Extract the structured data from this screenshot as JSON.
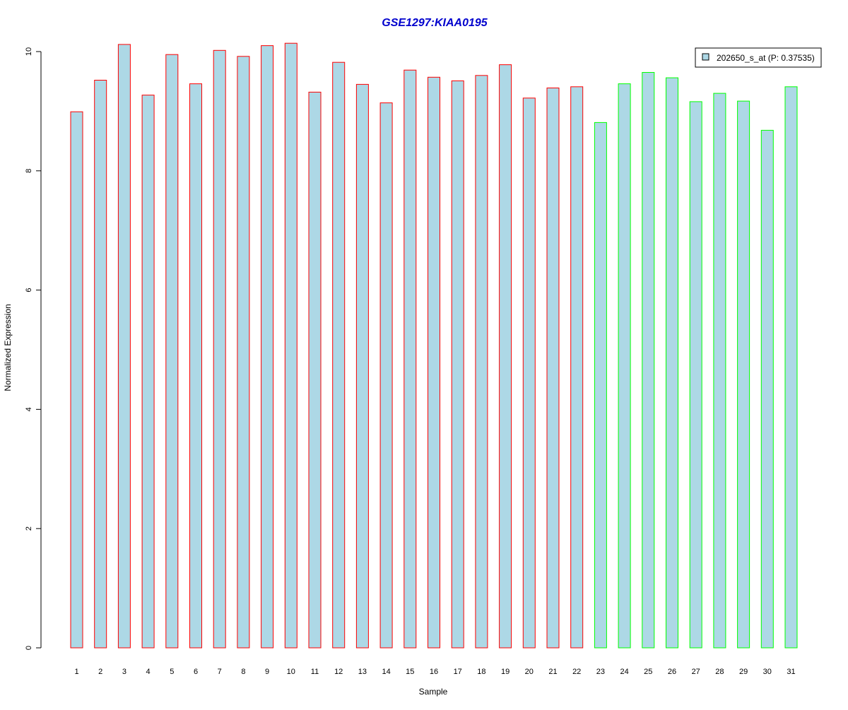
{
  "chart_data": {
    "type": "bar",
    "title": "GSE1297:KIAA0195",
    "xlabel": "Sample",
    "ylabel": "Normalized Expression",
    "ylim": [
      0,
      10.2
    ],
    "yticks": [
      "0",
      "2",
      "4",
      "6",
      "8",
      "10"
    ],
    "categories": [
      "1",
      "2",
      "3",
      "4",
      "5",
      "6",
      "7",
      "8",
      "9",
      "10",
      "11",
      "12",
      "13",
      "14",
      "15",
      "16",
      "17",
      "18",
      "19",
      "20",
      "21",
      "22",
      "23",
      "24",
      "25",
      "26",
      "27",
      "28",
      "29",
      "30",
      "31"
    ],
    "values": [
      8.99,
      9.52,
      10.12,
      9.27,
      9.95,
      9.46,
      10.02,
      9.92,
      10.1,
      10.14,
      9.32,
      9.82,
      9.45,
      9.14,
      9.69,
      9.57,
      9.51,
      9.6,
      9.78,
      9.22,
      9.39,
      9.41,
      8.81,
      9.46,
      9.65,
      9.56,
      9.16,
      9.3,
      9.17,
      8.68,
      9.41
    ],
    "groups": [
      "red",
      "red",
      "red",
      "red",
      "red",
      "red",
      "red",
      "red",
      "red",
      "red",
      "red",
      "red",
      "red",
      "red",
      "red",
      "red",
      "red",
      "red",
      "red",
      "red",
      "red",
      "red",
      "green",
      "green",
      "green",
      "green",
      "green",
      "green",
      "green",
      "green",
      "green"
    ],
    "legend": {
      "label": "202650_s_at (P: 0.37535)",
      "position": "top-right"
    },
    "grid": false,
    "colors": {
      "fill": "#add8e6",
      "red": "#ff0000",
      "green": "#00ff00",
      "title": "#0000cd",
      "axis": "#000000"
    }
  }
}
